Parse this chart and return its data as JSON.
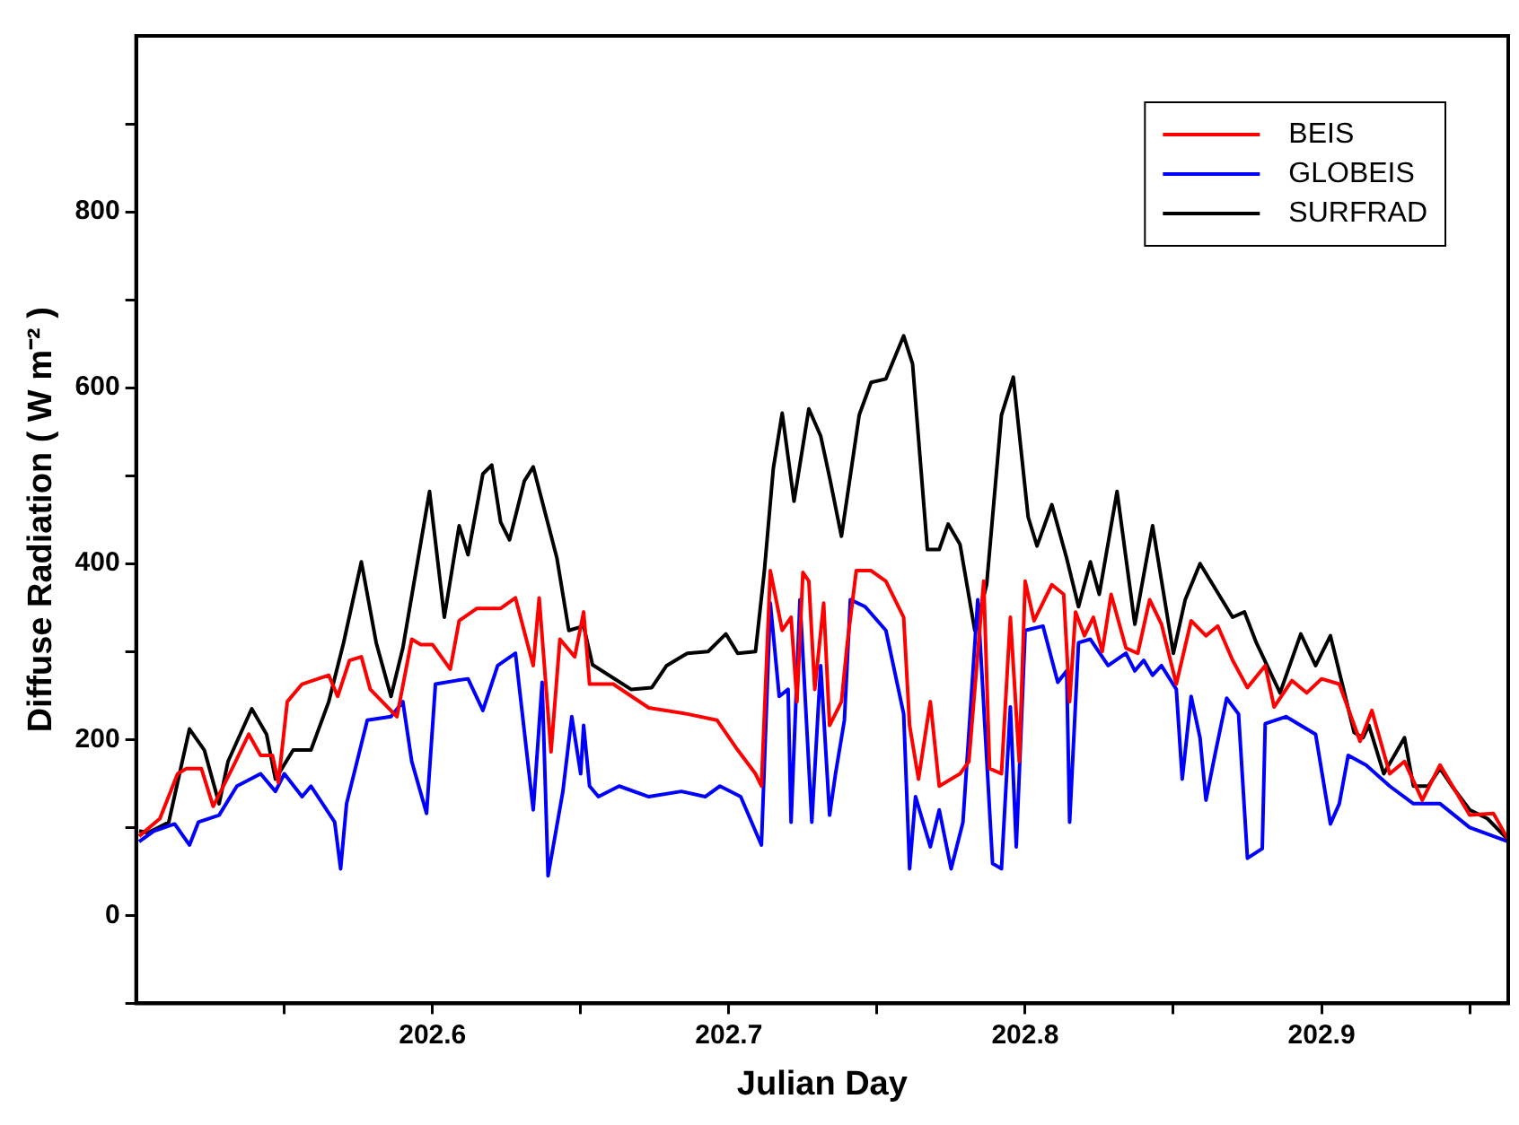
{
  "chart_data": {
    "type": "line",
    "xlabel": "Julian Day",
    "ylabel": "Diffuse Radiation ( W m⁻² )",
    "legend": "top right",
    "marker": "none",
    "line_style": "solid",
    "xlim": [
      202.5,
      202.963
    ],
    "xticks": [
      {
        "value": 202.55,
        "label": null
      },
      202.6,
      {
        "value": 202.65,
        "label": null
      },
      202.7,
      {
        "value": 202.75,
        "label": null
      },
      202.8,
      {
        "value": 202.85,
        "label": null
      },
      202.9,
      {
        "value": 202.95,
        "label": null
      }
    ],
    "ylim": [
      -100,
      1000
    ],
    "yticks": [
      {
        "value": -100,
        "label": null
      },
      0,
      {
        "value": 100,
        "label": null
      },
      200,
      {
        "value": 300,
        "label": null
      },
      400,
      {
        "value": 500,
        "label": null
      },
      600,
      {
        "value": 700,
        "label": null
      },
      800,
      {
        "value": 900,
        "label": null
      }
    ],
    "series": [
      {
        "name": "BEIS",
        "color": "#ff0000",
        "x": [
          202.501,
          202.508,
          202.514,
          202.517,
          202.522,
          202.526,
          202.533,
          202.538,
          202.542,
          202.546,
          202.548,
          202.551,
          202.556,
          202.565,
          202.568,
          202.572,
          202.576,
          202.579,
          202.588,
          202.593,
          202.596,
          202.6,
          202.606,
          202.609,
          202.615,
          202.623,
          202.628,
          202.634,
          202.636,
          202.64,
          202.643,
          202.648,
          202.651,
          202.653,
          202.661,
          202.673,
          202.686,
          202.696,
          202.703,
          202.709,
          202.711,
          202.714,
          202.718,
          202.721,
          202.723,
          202.725,
          202.727,
          202.729,
          202.732,
          202.734,
          202.738,
          202.74,
          202.743,
          202.748,
          202.753,
          202.759,
          202.761,
          202.764,
          202.768,
          202.771,
          202.778,
          202.781,
          202.786,
          202.788,
          202.792,
          202.795,
          202.798,
          202.8,
          202.803,
          202.809,
          202.813,
          202.815,
          202.817,
          202.82,
          202.823,
          202.826,
          202.829,
          202.834,
          202.838,
          202.842,
          202.846,
          202.851,
          202.856,
          202.861,
          202.865,
          202.87,
          202.875,
          202.881,
          202.884,
          202.89,
          202.895,
          202.9,
          202.906,
          202.913,
          202.917,
          202.923,
          202.928,
          202.934,
          202.94,
          202.95,
          202.958,
          202.963
        ],
        "values": [
          90,
          110,
          161,
          167,
          167,
          124,
          171,
          206,
          182,
          182,
          151,
          243,
          263,
          273,
          249,
          290,
          294,
          257,
          226,
          314,
          308,
          308,
          280,
          335,
          349,
          349,
          361,
          284,
          361,
          186,
          314,
          294,
          345,
          263,
          263,
          236,
          229,
          222,
          188,
          161,
          147,
          392,
          324,
          339,
          243,
          390,
          380,
          257,
          355,
          216,
          243,
          310,
          392,
          392,
          380,
          339,
          216,
          155,
          243,
          147,
          161,
          175,
          380,
          167,
          161,
          339,
          175,
          380,
          335,
          376,
          365,
          243,
          345,
          318,
          339,
          300,
          365,
          304,
          298,
          359,
          331,
          263,
          335,
          318,
          329,
          290,
          259,
          284,
          237,
          267,
          253,
          269,
          263,
          198,
          233,
          161,
          175,
          131,
          171,
          114,
          116,
          86
        ]
      },
      {
        "name": "GLOBEIS",
        "color": "#0000ff",
        "x": [
          202.501,
          202.506,
          202.513,
          202.518,
          202.521,
          202.528,
          202.534,
          202.542,
          202.547,
          202.55,
          202.556,
          202.559,
          202.567,
          202.569,
          202.571,
          202.578,
          202.586,
          202.59,
          202.593,
          202.598,
          202.601,
          202.608,
          202.612,
          202.617,
          202.622,
          202.628,
          202.634,
          202.637,
          202.639,
          202.644,
          202.647,
          202.65,
          202.651,
          202.653,
          202.656,
          202.663,
          202.673,
          202.684,
          202.692,
          202.697,
          202.704,
          202.711,
          202.714,
          202.717,
          202.72,
          202.721,
          202.724,
          202.728,
          202.731,
          202.734,
          202.736,
          202.739,
          202.741,
          202.746,
          202.753,
          202.759,
          202.761,
          202.763,
          202.768,
          202.771,
          202.775,
          202.779,
          202.784,
          202.789,
          202.792,
          202.795,
          202.797,
          202.8,
          202.806,
          202.811,
          202.814,
          202.815,
          202.818,
          202.822,
          202.828,
          202.834,
          202.837,
          202.84,
          202.843,
          202.846,
          202.851,
          202.853,
          202.856,
          202.859,
          202.861,
          202.864,
          202.868,
          202.872,
          202.875,
          202.88,
          202.881,
          202.888,
          202.898,
          202.903,
          202.906,
          202.909,
          202.915,
          202.923,
          202.931,
          202.94,
          202.95,
          202.963
        ],
        "values": [
          84,
          96,
          104,
          80,
          106,
          114,
          147,
          161,
          141,
          161,
          135,
          147,
          106,
          53,
          127,
          222,
          226,
          243,
          175,
          116,
          263,
          267,
          269,
          233,
          284,
          298,
          120,
          265,
          45,
          141,
          226,
          161,
          216,
          147,
          135,
          147,
          135,
          141,
          135,
          147,
          135,
          80,
          355,
          249,
          257,
          106,
          359,
          106,
          284,
          114,
          161,
          222,
          359,
          351,
          324,
          229,
          53,
          135,
          78,
          120,
          53,
          106,
          359,
          59,
          53,
          237,
          78,
          324,
          329,
          265,
          278,
          106,
          310,
          314,
          284,
          298,
          278,
          290,
          273,
          284,
          257,
          155,
          249,
          202,
          131,
          182,
          247,
          229,
          65,
          76,
          218,
          226,
          206,
          104,
          127,
          182,
          171,
          147,
          127,
          127,
          100,
          84
        ]
      },
      {
        "name": "SURFRAD",
        "color": "#000000",
        "x": [
          202.501,
          202.504,
          202.511,
          202.518,
          202.523,
          202.528,
          202.531,
          202.539,
          202.544,
          202.547,
          202.553,
          202.559,
          202.565,
          202.57,
          202.576,
          202.581,
          202.586,
          202.59,
          202.599,
          202.604,
          202.609,
          202.612,
          202.617,
          202.62,
          202.623,
          202.626,
          202.631,
          202.634,
          202.642,
          202.646,
          202.651,
          202.654,
          202.667,
          202.674,
          202.679,
          202.686,
          202.693,
          202.699,
          202.703,
          202.709,
          202.712,
          202.715,
          202.718,
          202.722,
          202.727,
          202.731,
          202.734,
          202.738,
          202.744,
          202.748,
          202.753,
          202.759,
          202.762,
          202.767,
          202.771,
          202.774,
          202.778,
          202.783,
          202.787,
          202.792,
          202.796,
          202.801,
          202.804,
          202.809,
          202.814,
          202.818,
          202.822,
          202.825,
          202.831,
          202.837,
          202.843,
          202.85,
          202.854,
          202.859,
          202.87,
          202.874,
          202.878,
          202.886,
          202.893,
          202.898,
          202.903,
          202.911,
          202.914,
          202.916,
          202.921,
          202.928,
          202.931,
          202.936,
          202.94,
          202.944,
          202.95,
          202.956,
          202.963
        ],
        "values": [
          96,
          94,
          106,
          212,
          188,
          127,
          175,
          235,
          206,
          155,
          188,
          188,
          243,
          310,
          402,
          310,
          249,
          304,
          482,
          339,
          443,
          410,
          502,
          512,
          447,
          427,
          494,
          510,
          406,
          324,
          329,
          285,
          257,
          259,
          284,
          298,
          300,
          320,
          298,
          300,
          392,
          508,
          571,
          471,
          576,
          545,
          498,
          431,
          569,
          606,
          610,
          659,
          627,
          416,
          416,
          445,
          422,
          324,
          376,
          569,
          612,
          453,
          420,
          467,
          406,
          351,
          402,
          365,
          482,
          331,
          443,
          298,
          359,
          400,
          339,
          345,
          310,
          253,
          320,
          284,
          318,
          208,
          202,
          216,
          161,
          202,
          147,
          147,
          167,
          147,
          120,
          110,
          86
        ]
      }
    ]
  }
}
